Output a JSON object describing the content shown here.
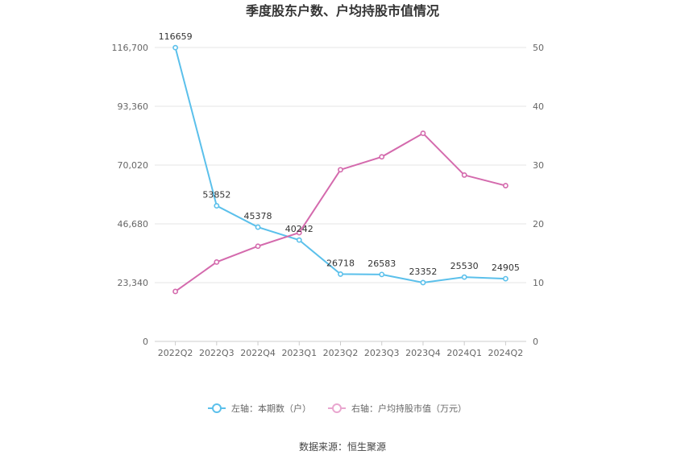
{
  "chart_data": {
    "type": "line",
    "title": "季度股东户数、户均持股市值情况",
    "categories": [
      "2022Q2",
      "2022Q3",
      "2022Q4",
      "2023Q1",
      "2023Q2",
      "2023Q3",
      "2023Q4",
      "2024Q1",
      "2024Q2"
    ],
    "left_axis": {
      "ylim": [
        0,
        116700
      ],
      "ticks": [
        "0",
        "23,340",
        "46,680",
        "70,020",
        "93,360",
        "116,700"
      ]
    },
    "right_axis": {
      "ylim": [
        0,
        50
      ],
      "ticks": [
        "0",
        "10",
        "20",
        "30",
        "40",
        "50"
      ]
    },
    "series": [
      {
        "name": "左轴：本期数（户）",
        "axis": "left",
        "color": "#5bc0eb",
        "values": [
          116659,
          53852,
          45378,
          40242,
          26718,
          26583,
          23352,
          25530,
          24905
        ],
        "labels": [
          "116659",
          "53852",
          "45378",
          "40242",
          "26718",
          "26583",
          "23352",
          "25530",
          "24905"
        ]
      },
      {
        "name": "右轴：户均持股市值（万元）",
        "axis": "right",
        "color": "#d46aad",
        "values": [
          8.5,
          13.5,
          16.2,
          18.5,
          29.2,
          31.4,
          35.4,
          28.3,
          26.5
        ]
      }
    ],
    "grid": true,
    "legend": "bottom-center"
  },
  "source": "数据来源：恒生聚源"
}
